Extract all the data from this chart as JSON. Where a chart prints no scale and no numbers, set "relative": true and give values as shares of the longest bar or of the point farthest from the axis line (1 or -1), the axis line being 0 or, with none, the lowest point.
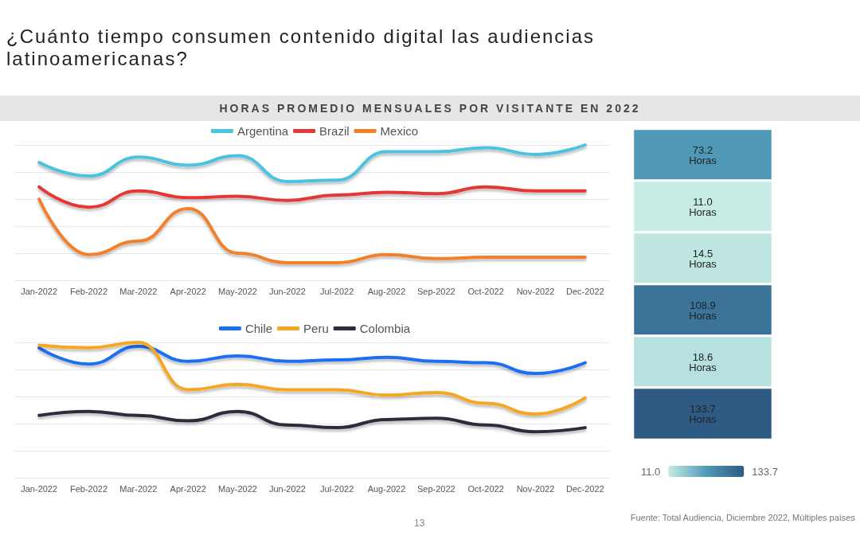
{
  "chart_data": [
    {
      "type": "line",
      "title": "¿Cuánto tiempo consumen contenido digital las audiencias latinoamericanas?",
      "subtitle": "HORAS PROMEDIO MENSUALES POR VISITANTE EN 2022",
      "annotations": [
        "13",
        "Fuente: Total Audiencia, Diciembre 2022, Múltiples países"
      ],
      "relative": true,
      "grid": "y",
      "legend": "top",
      "marker": "none",
      "line_style": "solid",
      "categories": [
        "Jan-2022",
        "Feb-2022",
        "Mar-2022",
        "Apr-2022",
        "May-2022",
        "Jun-2022",
        "Jul-2022",
        "Aug-2022",
        "Sep-2022",
        "Oct-2022",
        "Nov-2022",
        "Dec-2022"
      ],
      "series": [
        {
          "name": "Argentina",
          "color": "#4cc3e0",
          "values": [
            0.87,
            0.77,
            0.91,
            0.85,
            0.92,
            0.73,
            0.74,
            0.95,
            0.95,
            0.98,
            0.93,
            1
          ]
        },
        {
          "name": "Brazil",
          "color": "#e53935",
          "values": [
            0.69,
            0.54,
            0.66,
            0.61,
            0.62,
            0.59,
            0.63,
            0.65,
            0.64,
            0.69,
            0.66,
            0.66
          ]
        },
        {
          "name": "Mexico",
          "color": "#f47f2a",
          "values": [
            0.6,
            0.19,
            0.29,
            0.53,
            0.2,
            0.13,
            0.13,
            0.19,
            0.16,
            0.17,
            0.17,
            0.17
          ]
        }
      ]
    },
    {
      "type": "line",
      "relative": true,
      "grid": "y",
      "legend": "top",
      "marker": "none",
      "line_style": "solid",
      "categories": [
        "Jan-2022",
        "Feb-2022",
        "Mar-2022",
        "Apr-2022",
        "May-2022",
        "Jun-2022",
        "Jul-2022",
        "Aug-2022",
        "Sep-2022",
        "Oct-2022",
        "Nov-2022",
        "Dec-2022"
      ],
      "series": [
        {
          "name": "Chile",
          "color": "#1e6ef5",
          "values": [
            0.96,
            0.84,
            0.97,
            0.86,
            0.9,
            0.86,
            0.87,
            0.89,
            0.86,
            0.85,
            0.77,
            0.85
          ]
        },
        {
          "name": "Peru",
          "color": "#f5a623",
          "values": [
            0.98,
            0.96,
            1,
            0.65,
            0.69,
            0.65,
            0.65,
            0.61,
            0.63,
            0.55,
            0.47,
            0.59
          ]
        },
        {
          "name": "Colombia",
          "color": "#2a2f3a",
          "values": [
            0.46,
            0.49,
            0.46,
            0.42,
            0.49,
            0.39,
            0.37,
            0.43,
            0.44,
            0.39,
            0.34,
            0.37
          ]
        }
      ]
    },
    {
      "type": "other",
      "categories": [
        null,
        null,
        null,
        null,
        null,
        null
      ],
      "values": [
        73.2,
        11.0,
        14.5,
        108.9,
        18.6,
        133.7
      ],
      "value_labels": [
        "73.2 Horas",
        "11.0 Horas",
        "14.5 Horas",
        "108.9 Horas",
        "18.6 Horas",
        "133.7 Horas"
      ],
      "annotations": [
        "11.0",
        "133.7"
      ]
    }
  ]
}
